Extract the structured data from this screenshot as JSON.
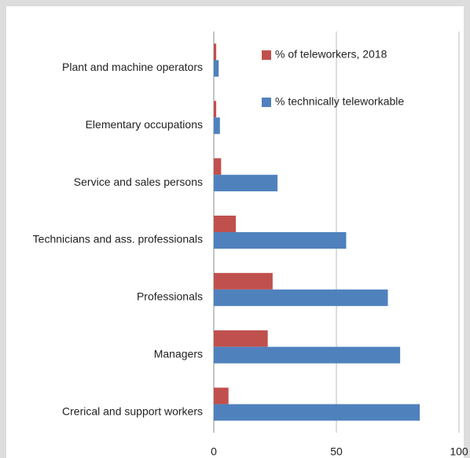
{
  "chart_data": {
    "type": "hbar",
    "categories": [
      "Plant and machine operators",
      "Elementary occupations",
      "Service and sales persons",
      "Technicians and ass. professionals",
      "Professionals",
      "Managers",
      "Crerical and support workers"
    ],
    "series": [
      {
        "name": "% of teleworkers, 2018",
        "color": "#c0504d",
        "values": [
          1,
          1,
          3,
          9,
          24,
          22,
          6
        ]
      },
      {
        "name": "% technically teleworkable",
        "color": "#4f81bd",
        "values": [
          2,
          2.5,
          26,
          54,
          71,
          76,
          84
        ]
      }
    ],
    "xlim": [
      0,
      100
    ],
    "xticks": [
      0,
      50,
      100
    ],
    "grid": true,
    "legend": "top-right"
  }
}
